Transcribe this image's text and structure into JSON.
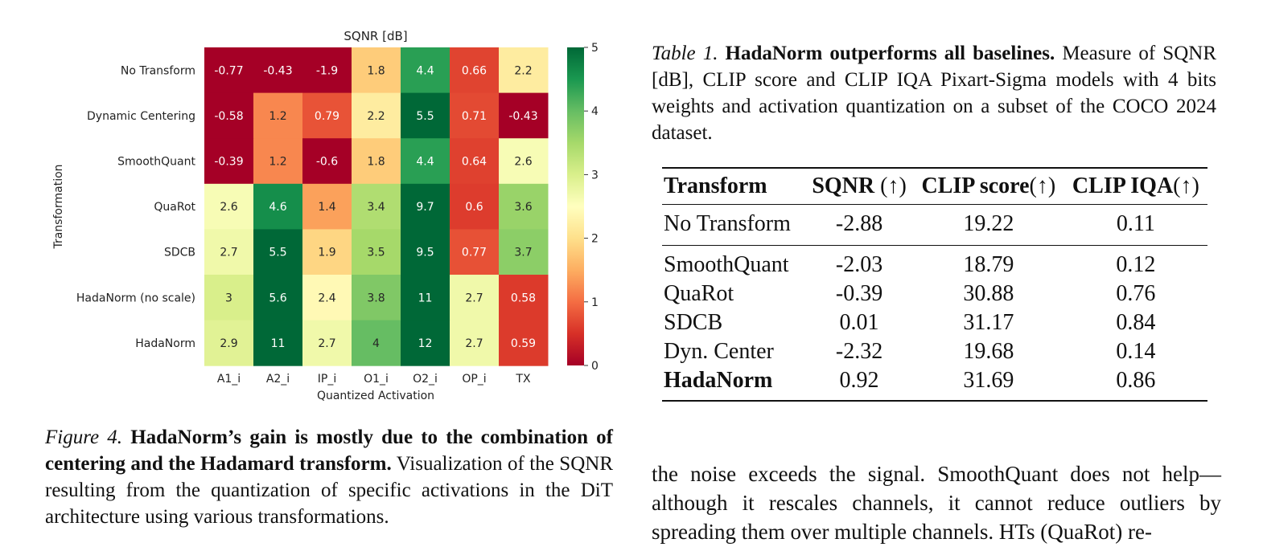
{
  "chart_data": {
    "type": "heatmap",
    "title": "SQNR [dB]",
    "xlabel": "Quantized Activation",
    "ylabel": "Transformation",
    "x": [
      "A1_i",
      "A2_i",
      "IP_i",
      "O1_i",
      "O2_i",
      "OP_i",
      "TX"
    ],
    "y": [
      "No Transform",
      "Dynamic Centering",
      "SmoothQuant",
      "QuaRot",
      "SDCB",
      "HadaNorm (no scale)",
      "HadaNorm"
    ],
    "values": [
      [
        -0.77,
        -0.43,
        -1.9,
        1.8,
        4.4,
        0.66,
        2.2
      ],
      [
        -0.58,
        1.2,
        0.79,
        2.2,
        5.5,
        0.71,
        -0.43
      ],
      [
        -0.39,
        1.2,
        -0.6,
        1.8,
        4.4,
        0.64,
        2.6
      ],
      [
        2.6,
        4.6,
        1.4,
        3.4,
        9.7,
        0.6,
        3.6
      ],
      [
        2.7,
        5.5,
        1.9,
        3.5,
        9.5,
        0.77,
        3.7
      ],
      [
        3,
        5.6,
        2.4,
        3.8,
        11,
        2.7,
        0.58
      ],
      [
        2.9,
        11,
        2.7,
        4,
        12,
        2.7,
        0.59
      ]
    ],
    "colorbar": {
      "min": 0,
      "max": 5,
      "ticks": [
        "0",
        "1",
        "2",
        "3",
        "4",
        "5"
      ]
    },
    "colormap": "RdYlGn"
  },
  "figure_caption": {
    "label": "Figure 4.",
    "bold": "HadaNorm’s gain is mostly due to the combination of centering and the Hadamard transform.",
    "text": "Visualization of the SQNR resulting from the quantization of specific activations in the DiT architecture using various transformations."
  },
  "table_caption": {
    "label": "Table 1.",
    "bold": "HadaNorm outperforms all baselines.",
    "text": "Measure of SQNR [dB], CLIP score and CLIP IQA Pixart-Sigma models with 4 bits weights and activation quantization on a subset of the COCO 2024 dataset."
  },
  "table": {
    "headers": [
      {
        "label": "Transform",
        "arrow": ""
      },
      {
        "label": "SQNR ",
        "arrow": "(↑)"
      },
      {
        "label": "CLIP score",
        "arrow": "(↑)"
      },
      {
        "label": "CLIP IQA",
        "arrow": "(↑)"
      }
    ],
    "rows": [
      [
        "No Transform",
        "-2.88",
        "19.22",
        "0.11"
      ],
      [
        "SmoothQuant",
        "-2.03",
        "18.79",
        "0.12"
      ],
      [
        "QuaRot",
        "-0.39",
        "30.88",
        "0.76"
      ],
      [
        "SDCB",
        "0.01",
        "31.17",
        "0.84"
      ],
      [
        "Dyn. Center",
        "-2.32",
        "19.68",
        "0.14"
      ],
      [
        "HadaNorm",
        "0.92",
        "31.69",
        "0.86"
      ]
    ]
  },
  "body_text": "the noise exceeds the signal. SmoothQuant does not help—although it rescales channels, it cannot reduce outliers by spreading them over multiple channels. HTs (QuaRot) re-"
}
